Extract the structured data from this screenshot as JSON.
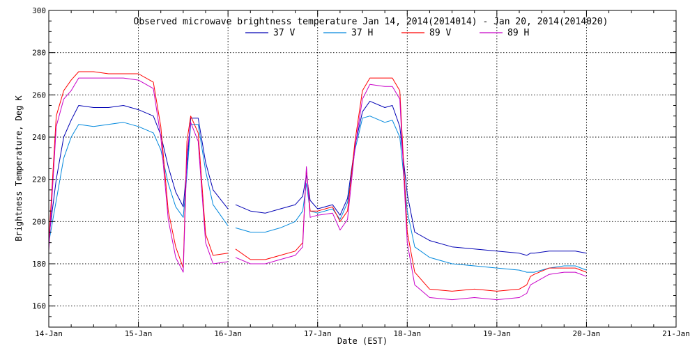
{
  "chart_data": {
    "type": "line",
    "title": "Observed microwave brightness temperature Jan 14, 2014(2014014) - Jan 20, 2014(2014020)",
    "xlabel": "Date (EST)",
    "ylabel": "Brightness Temperature, Deg K",
    "xlim": [
      "14-Jan 00:00",
      "21-Jan 00:00"
    ],
    "ylim": [
      150,
      300
    ],
    "x_tick_labels": [
      "14-Jan",
      "15-Jan",
      "16-Jan",
      "17-Jan",
      "18-Jan",
      "19-Jan",
      "20-Jan",
      "21-Jan"
    ],
    "y_tick_labels": [
      "160",
      "180",
      "200",
      "220",
      "240",
      "260",
      "280",
      "300"
    ],
    "grid": true,
    "legend_position": "top-center",
    "x": [
      "14-Jan 00:00",
      "14-Jan 02:00",
      "14-Jan 04:00",
      "14-Jan 06:00",
      "14-Jan 08:00",
      "14-Jan 12:00",
      "14-Jan 16:00",
      "14-Jan 20:00",
      "15-Jan 00:00",
      "15-Jan 04:00",
      "15-Jan 06:00",
      "15-Jan 08:00",
      "15-Jan 10:00",
      "15-Jan 12:00",
      "15-Jan 13:00",
      "15-Jan 14:00",
      "15-Jan 16:00",
      "15-Jan 18:00",
      "15-Jan 20:00",
      "16-Jan 00:00",
      "16-Jan 02:00",
      "16-Jan 06:00",
      "16-Jan 10:00",
      "16-Jan 14:00",
      "16-Jan 18:00",
      "16-Jan 20:00",
      "16-Jan 21:00",
      "16-Jan 22:00",
      "17-Jan 00:00",
      "17-Jan 04:00",
      "17-Jan 06:00",
      "17-Jan 08:00",
      "17-Jan 10:00",
      "17-Jan 12:00",
      "17-Jan 14:00",
      "17-Jan 18:00",
      "17-Jan 20:00",
      "17-Jan 22:00",
      "18-Jan 00:00",
      "18-Jan 02:00",
      "18-Jan 06:00",
      "18-Jan 12:00",
      "18-Jan 18:00",
      "19-Jan 00:00",
      "19-Jan 06:00",
      "19-Jan 08:00",
      "19-Jan 09:00",
      "19-Jan 10:00",
      "19-Jan 14:00",
      "19-Jan 18:00",
      "19-Jan 20:00",
      "19-Jan 21:00",
      "20-Jan 00:00"
    ],
    "gaps_after": [
      "16-Jan 00:00"
    ],
    "series": [
      {
        "name": "37 V",
        "color": "#0000b4",
        "values": [
          192,
          220,
          240,
          248,
          255,
          254,
          254,
          255,
          253,
          250,
          241,
          226,
          214,
          207,
          226,
          249,
          249,
          228,
          215,
          206,
          208,
          205,
          204,
          206,
          208,
          212,
          222,
          210,
          206,
          208,
          203,
          211,
          236,
          252,
          257,
          254,
          255,
          245,
          213,
          195,
          191,
          188,
          187,
          186,
          185,
          184,
          185,
          185,
          186,
          186,
          186,
          186,
          185
        ]
      },
      {
        "name": "37 H",
        "color": "#0088dd",
        "values": [
          190,
          210,
          230,
          240,
          246,
          245,
          246,
          247,
          245,
          242,
          234,
          218,
          207,
          202,
          222,
          246,
          246,
          224,
          208,
          198,
          197,
          195,
          195,
          197,
          200,
          205,
          218,
          205,
          204,
          206,
          201,
          209,
          234,
          249,
          250,
          247,
          248,
          240,
          205,
          188,
          183,
          180,
          179,
          178,
          177,
          176,
          176,
          176,
          178,
          179,
          179,
          179,
          177
        ]
      },
      {
        "name": "89 V",
        "color": "#ff0000",
        "values": [
          190,
          250,
          262,
          267,
          271,
          271,
          270,
          270,
          270,
          266,
          245,
          205,
          188,
          178,
          238,
          250,
          242,
          194,
          184,
          185,
          187,
          182,
          182,
          184,
          186,
          190,
          225,
          205,
          205,
          207,
          200,
          205,
          238,
          262,
          268,
          268,
          268,
          262,
          195,
          176,
          168,
          167,
          168,
          167,
          168,
          170,
          174,
          175,
          178,
          178,
          178,
          178,
          176
        ]
      },
      {
        "name": "89 H",
        "color": "#c800c8",
        "values": [
          186,
          245,
          258,
          262,
          268,
          268,
          268,
          268,
          267,
          263,
          240,
          201,
          183,
          176,
          232,
          247,
          238,
          190,
          180,
          181,
          183,
          180,
          180,
          182,
          184,
          188,
          226,
          202,
          203,
          204,
          196,
          201,
          235,
          258,
          265,
          264,
          264,
          258,
          190,
          170,
          164,
          163,
          164,
          163,
          164,
          166,
          170,
          171,
          175,
          176,
          176,
          176,
          174
        ]
      }
    ]
  }
}
